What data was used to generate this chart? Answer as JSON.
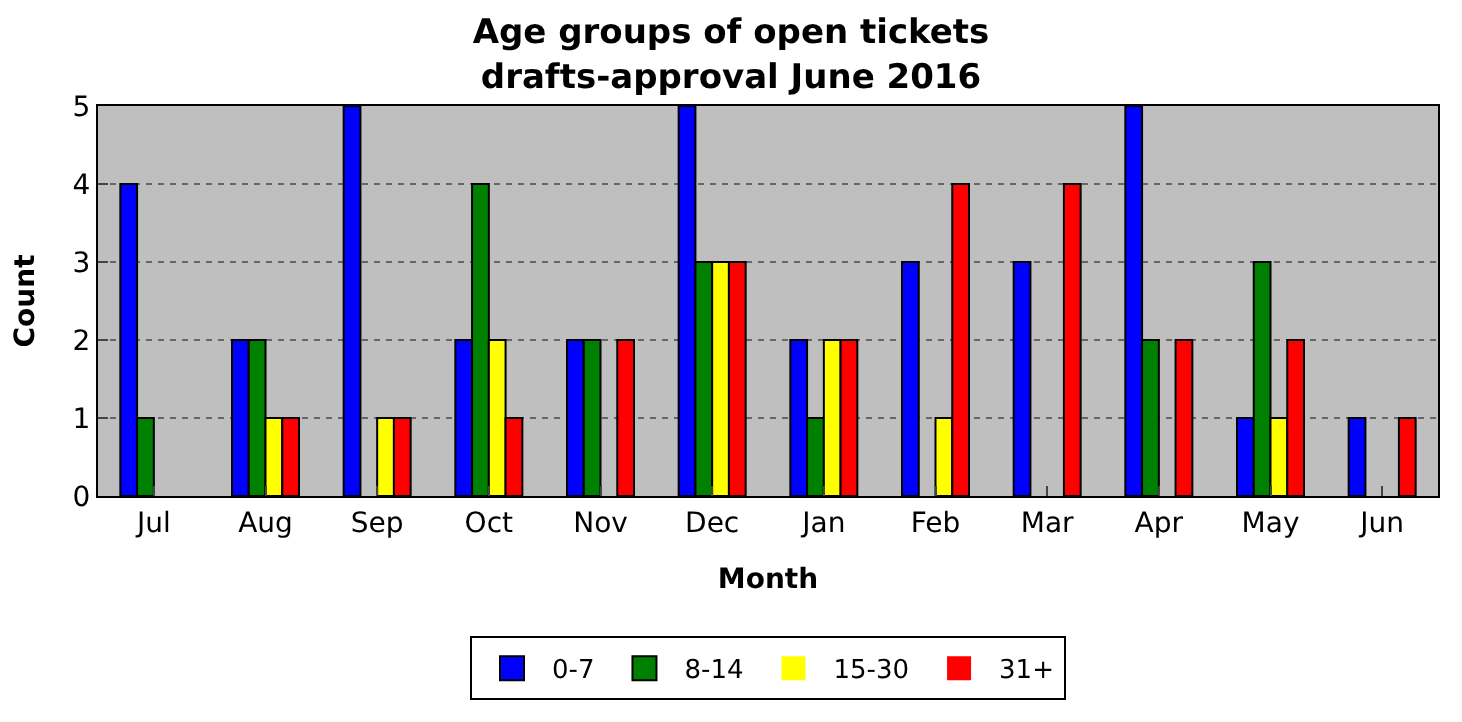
{
  "chart_data": {
    "type": "bar",
    "title": "Age groups of open tickets\ndrafts-approval June 2016",
    "xlabel": "Month",
    "ylabel": "Count",
    "categories": [
      "Jul",
      "Aug",
      "Sep",
      "Oct",
      "Nov",
      "Dec",
      "Jan",
      "Feb",
      "Mar",
      "Apr",
      "May",
      "Jun"
    ],
    "series": [
      {
        "name": "0-7",
        "color": "#0000ff",
        "values": [
          4,
          2,
          5,
          2,
          2,
          5,
          2,
          3,
          3,
          5,
          1,
          1
        ]
      },
      {
        "name": "8-14",
        "color": "#008000",
        "values": [
          1,
          2,
          0,
          4,
          2,
          3,
          1,
          0,
          0,
          2,
          3,
          0
        ]
      },
      {
        "name": "15-30",
        "color": "#ffff00",
        "values": [
          0,
          1,
          1,
          2,
          0,
          3,
          2,
          1,
          0,
          0,
          1,
          0
        ]
      },
      {
        "name": "31+",
        "color": "#ff0000",
        "values": [
          0,
          1,
          1,
          1,
          2,
          3,
          2,
          4,
          4,
          2,
          2,
          1
        ]
      }
    ],
    "ylim": [
      0,
      5
    ],
    "yticks": [
      0,
      1,
      2,
      3,
      4,
      5
    ],
    "grid": "y",
    "legend": "bottom"
  }
}
